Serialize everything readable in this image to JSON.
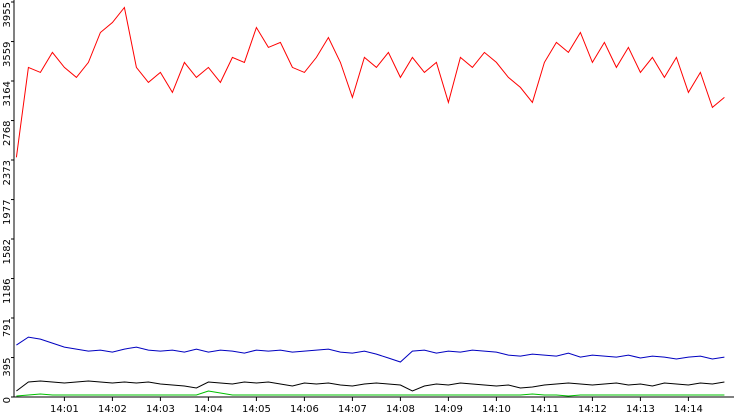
{
  "chart_data": {
    "type": "line",
    "x": [
      0,
      0.25,
      0.5,
      0.75,
      1,
      1.25,
      1.5,
      1.75,
      2,
      2.25,
      2.5,
      2.75,
      3,
      3.25,
      3.5,
      3.75,
      4,
      4.25,
      4.5,
      4.75,
      5,
      5.25,
      5.5,
      5.75,
      6,
      6.25,
      6.5,
      6.75,
      7,
      7.25,
      7.5,
      7.75,
      8,
      8.25,
      8.5,
      8.75,
      9,
      9.25,
      9.5,
      9.75,
      10,
      10.25,
      10.5,
      10.75,
      11,
      11.25,
      11.5,
      11.75,
      12,
      12.25,
      12.5,
      12.75,
      13,
      13.25,
      13.5,
      13.75,
      14,
      14.25,
      14.5,
      14.75
    ],
    "series": [
      {
        "color": "#ff0000",
        "values": [
          2400,
          3300,
          3250,
          3450,
          3300,
          3200,
          3350,
          3650,
          3750,
          3900,
          3300,
          3150,
          3250,
          3050,
          3350,
          3200,
          3300,
          3150,
          3400,
          3350,
          3700,
          3500,
          3550,
          3300,
          3250,
          3400,
          3600,
          3350,
          3000,
          3400,
          3300,
          3450,
          3200,
          3400,
          3250,
          3350,
          2950,
          3400,
          3300,
          3450,
          3350,
          3200,
          3100,
          2950,
          3350,
          3550,
          3450,
          3650,
          3350,
          3550,
          3300,
          3500,
          3250,
          3400,
          3200,
          3400,
          3050,
          3250,
          2900,
          3000
        ]
      },
      {
        "color": "#0000c0",
        "values": [
          520,
          600,
          580,
          540,
          500,
          480,
          460,
          470,
          450,
          480,
          500,
          470,
          460,
          470,
          450,
          480,
          450,
          470,
          460,
          440,
          470,
          460,
          470,
          450,
          460,
          470,
          480,
          450,
          440,
          460,
          430,
          390,
          350,
          460,
          470,
          440,
          460,
          450,
          470,
          460,
          450,
          420,
          410,
          430,
          420,
          410,
          440,
          400,
          420,
          410,
          400,
          420,
          390,
          410,
          400,
          380,
          400,
          410,
          380,
          400
        ]
      },
      {
        "color": "#000000",
        "values": [
          60,
          150,
          160,
          150,
          140,
          150,
          160,
          150,
          140,
          150,
          140,
          150,
          130,
          120,
          110,
          90,
          150,
          140,
          130,
          150,
          140,
          150,
          130,
          110,
          140,
          130,
          140,
          120,
          110,
          130,
          140,
          130,
          120,
          60,
          110,
          130,
          120,
          140,
          130,
          120,
          110,
          120,
          90,
          100,
          120,
          130,
          140,
          130,
          120,
          130,
          140,
          120,
          130,
          110,
          140,
          130,
          120,
          140,
          130,
          150
        ]
      },
      {
        "color": "#00c000",
        "values": [
          10,
          20,
          30,
          20,
          20,
          20,
          20,
          20,
          20,
          20,
          20,
          20,
          20,
          20,
          20,
          20,
          60,
          40,
          20,
          20,
          20,
          20,
          20,
          20,
          20,
          20,
          20,
          20,
          20,
          20,
          20,
          20,
          20,
          20,
          20,
          20,
          20,
          20,
          20,
          20,
          20,
          20,
          20,
          30,
          20,
          20,
          10,
          20,
          20,
          20,
          20,
          20,
          20,
          20,
          20,
          20,
          20,
          20,
          20,
          20
        ]
      }
    ],
    "xlim": [
      -0.05,
      14.95
    ],
    "xticks": [
      {
        "value": 1,
        "label": "14:01"
      },
      {
        "value": 2,
        "label": "14:02"
      },
      {
        "value": 3,
        "label": "14:03"
      },
      {
        "value": 4,
        "label": "14:04"
      },
      {
        "value": 5,
        "label": "14:05"
      },
      {
        "value": 6,
        "label": "14:06"
      },
      {
        "value": 7,
        "label": "14:07"
      },
      {
        "value": 8,
        "label": "14:08"
      },
      {
        "value": 9,
        "label": "14:09"
      },
      {
        "value": 10,
        "label": "14:10"
      },
      {
        "value": 11,
        "label": "14:11"
      },
      {
        "value": 12,
        "label": "14:12"
      },
      {
        "value": 13,
        "label": "14:13"
      },
      {
        "value": 14,
        "label": "14:14"
      }
    ],
    "ylim": [
      0,
      3955
    ],
    "yticks": [
      0,
      395,
      791,
      1186,
      1582,
      1977,
      2373,
      2768,
      3164,
      3559,
      3955
    ]
  }
}
